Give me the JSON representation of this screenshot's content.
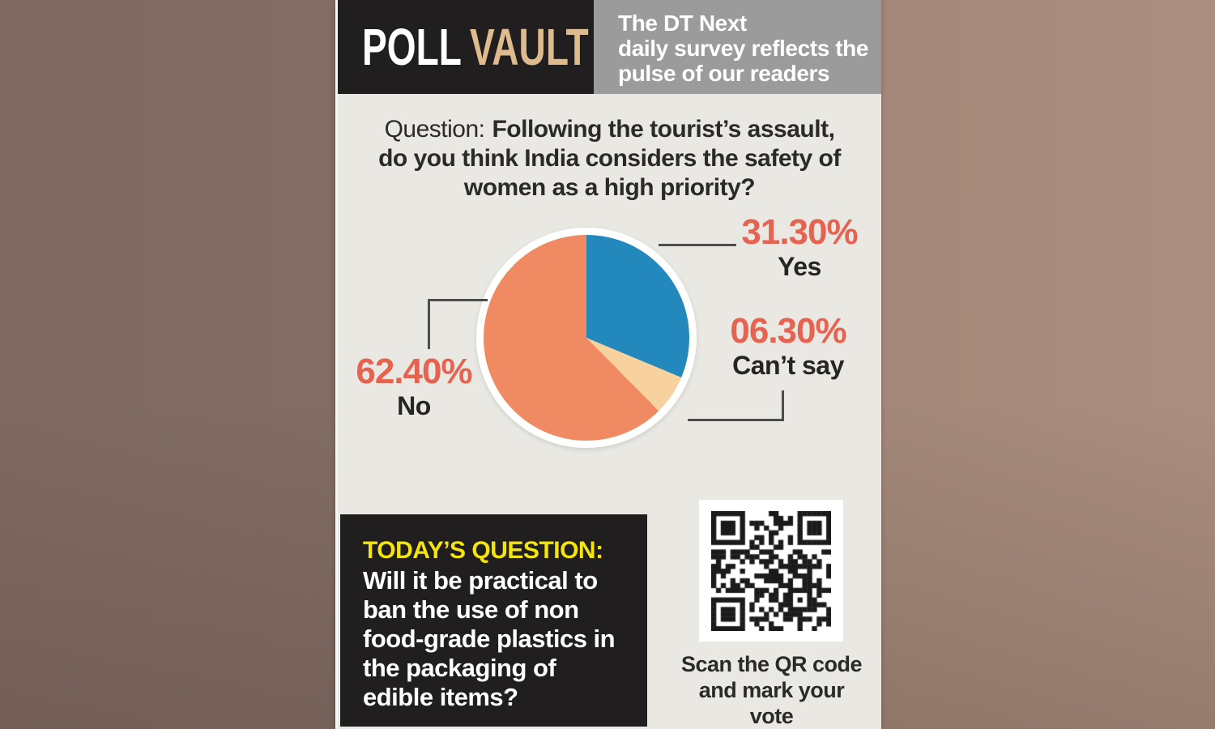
{
  "header": {
    "brand_poll": "POLL",
    "brand_vault": "VAULT",
    "tagline_lines": [
      "The DT Next",
      "daily survey reflects the",
      "pulse of our readers"
    ]
  },
  "poll": {
    "question_prefix": "Question:",
    "question_line1": "Following the tourist’s assault,",
    "question_line2": "do you think India considers the safety of",
    "question_line3": "women as a high priority?"
  },
  "chart_data": {
    "type": "pie",
    "title": "Following the tourist’s assault, do you think India considers the safety of women as a high priority?",
    "start_angle_deg": 0,
    "direction": "clockwise",
    "slices": [
      {
        "label": "Yes",
        "value": 31.3,
        "display": "31.30%",
        "color": "#2389bd"
      },
      {
        "label": "Can’t say",
        "value": 6.3,
        "display": "06.30%",
        "color": "#f8d29e"
      },
      {
        "label": "No",
        "value": 62.4,
        "display": "62.40%",
        "color": "#f08a62"
      }
    ]
  },
  "todays_question": {
    "heading": "TODAY’S QUESTION:",
    "lines": [
      "Will it be practical to",
      "ban the use of non",
      "food-grade plastics in",
      "the packaging of",
      "edible items?"
    ]
  },
  "qr": {
    "caption_line1": "Scan the QR code",
    "caption_line2": "and mark your vote"
  },
  "colors": {
    "accent_percent": "#e56350",
    "brand_tan": "#debb8c",
    "heading_yellow": "#f5e50a",
    "header_gray": "#9b9b9b",
    "panel_black": "#211e1f",
    "card_bg": "#e9e8e2"
  }
}
